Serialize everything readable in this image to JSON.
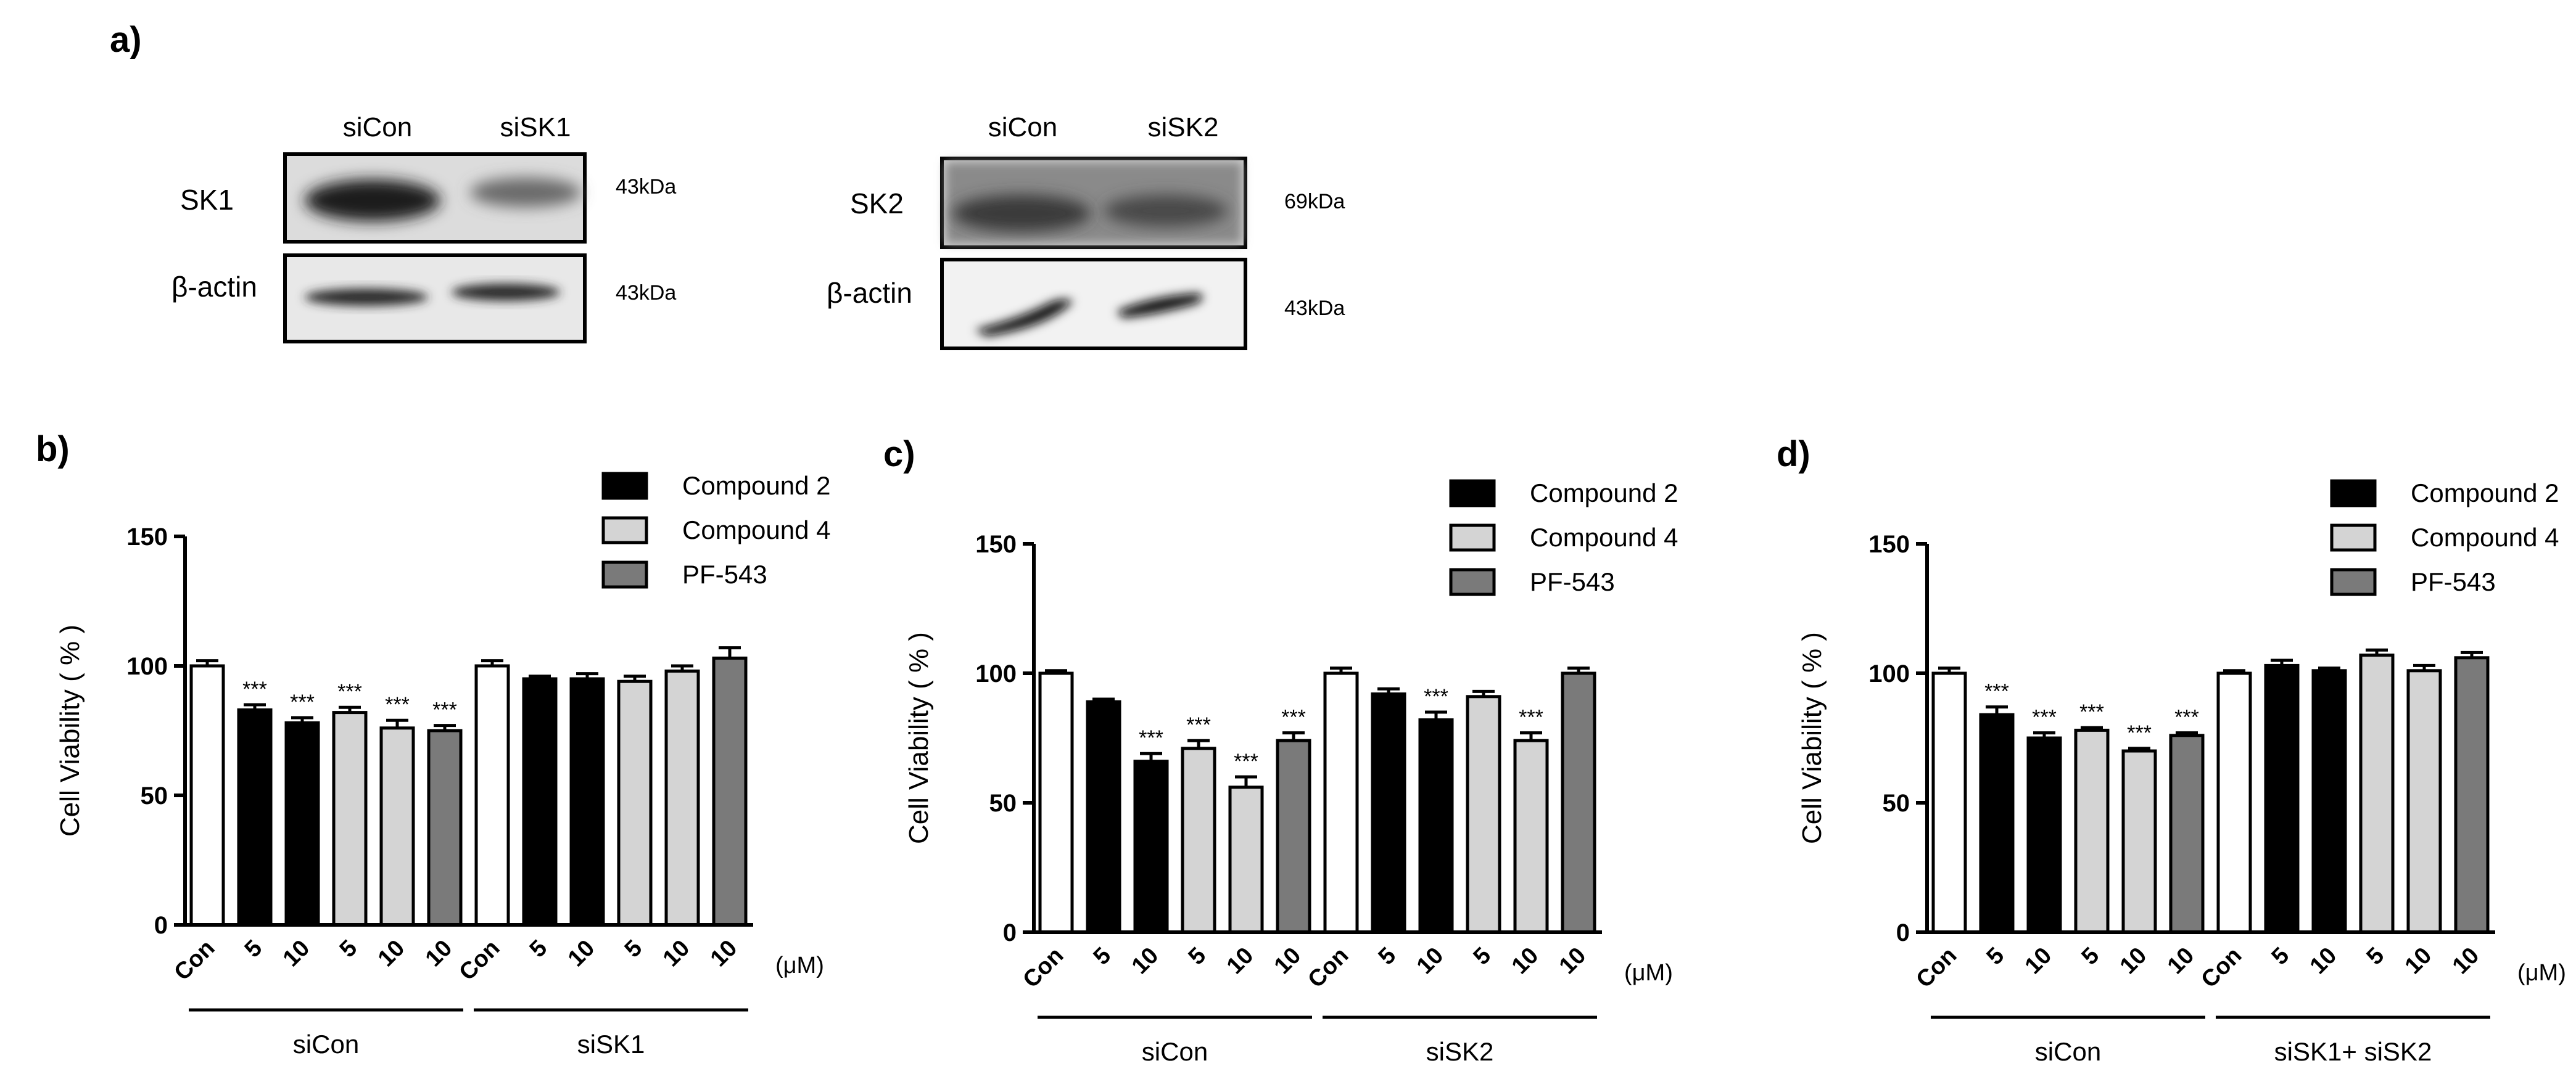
{
  "panel_labels": {
    "a": "a)",
    "b": "b)",
    "c": "c)",
    "d": "d)"
  },
  "blots": [
    {
      "lanes": [
        "siCon",
        "siSK1"
      ],
      "rows": [
        {
          "label": "SK1",
          "mw": "43kDa"
        },
        {
          "label": "β-actin",
          "mw": "43kDa"
        }
      ]
    },
    {
      "lanes": [
        "siCon",
        "siSK2"
      ],
      "rows": [
        {
          "label": "SK2",
          "mw": "69kDa"
        },
        {
          "label": "β-actin",
          "mw": "43kDa"
        }
      ]
    }
  ],
  "legend_entries": [
    {
      "name": "Compound 2",
      "color": "#000000"
    },
    {
      "name": "Compound 4",
      "color": "#d4d4d4"
    },
    {
      "name": "PF-543",
      "color": "#7a7a7a"
    }
  ],
  "significance_marker": "***",
  "unit_label": "(μM)",
  "chart_data": [
    {
      "type": "bar",
      "panel": "b)",
      "ylabel": "Cell Viability ( % )",
      "ylim": [
        0,
        150
      ],
      "yticks": [
        0,
        50,
        100,
        150
      ],
      "categories": [
        "Con",
        "5",
        "10",
        "5",
        "10",
        "10",
        "Con",
        "5",
        "10",
        "5",
        "10",
        "10"
      ],
      "fill_groups": [
        "con",
        "c2",
        "c2",
        "c4",
        "c4",
        "pf",
        "con",
        "c2",
        "c2",
        "c4",
        "c4",
        "pf"
      ],
      "values": [
        100,
        83,
        78,
        82,
        76,
        75,
        100,
        95,
        95,
        94,
        98,
        103
      ],
      "errors": [
        2,
        2,
        2,
        2,
        3,
        2,
        2,
        1,
        2,
        2,
        2,
        4
      ],
      "significant": [
        false,
        true,
        true,
        true,
        true,
        true,
        false,
        false,
        false,
        false,
        false,
        false
      ],
      "groups": [
        {
          "label": "siCon",
          "from": 0,
          "to": 5
        },
        {
          "label": "siSK1",
          "from": 6,
          "to": 11
        }
      ]
    },
    {
      "type": "bar",
      "panel": "c)",
      "ylabel": "Cell Viability ( % )",
      "ylim": [
        0,
        150
      ],
      "yticks": [
        0,
        50,
        100,
        150
      ],
      "categories": [
        "Con",
        "5",
        "10",
        "5",
        "10",
        "10",
        "Con",
        "5",
        "10",
        "5",
        "10",
        "10"
      ],
      "fill_groups": [
        "con",
        "c2",
        "c2",
        "c4",
        "c4",
        "pf",
        "con",
        "c2",
        "c2",
        "c4",
        "c4",
        "pf"
      ],
      "values": [
        100,
        89,
        66,
        71,
        56,
        74,
        100,
        92,
        82,
        91,
        74,
        100
      ],
      "errors": [
        1,
        1,
        3,
        3,
        4,
        3,
        2,
        2,
        3,
        2,
        3,
        2
      ],
      "significant": [
        false,
        false,
        true,
        true,
        true,
        true,
        false,
        false,
        true,
        false,
        true,
        false
      ],
      "groups": [
        {
          "label": "siCon",
          "from": 0,
          "to": 5
        },
        {
          "label": "siSK2",
          "from": 6,
          "to": 11
        }
      ]
    },
    {
      "type": "bar",
      "panel": "d)",
      "ylabel": "Cell Viability ( % )",
      "ylim": [
        0,
        150
      ],
      "yticks": [
        0,
        50,
        100,
        150
      ],
      "categories": [
        "Con",
        "5",
        "10",
        "5",
        "10",
        "10",
        "Con",
        "5",
        "10",
        "5",
        "10",
        "10"
      ],
      "fill_groups": [
        "con",
        "c2",
        "c2",
        "c4",
        "c4",
        "pf",
        "con",
        "c2",
        "c2",
        "c4",
        "c4",
        "pf"
      ],
      "values": [
        100,
        84,
        75,
        78,
        70,
        76,
        100,
        103,
        101,
        107,
        101,
        106
      ],
      "errors": [
        2,
        3,
        2,
        1,
        1,
        1,
        1,
        2,
        1,
        2,
        2,
        2
      ],
      "significant": [
        false,
        true,
        true,
        true,
        true,
        true,
        false,
        false,
        false,
        false,
        false,
        false
      ],
      "groups": [
        {
          "label": "siCon",
          "from": 0,
          "to": 5
        },
        {
          "label": "siSK1+ siSK2",
          "from": 6,
          "to": 11
        }
      ]
    }
  ]
}
